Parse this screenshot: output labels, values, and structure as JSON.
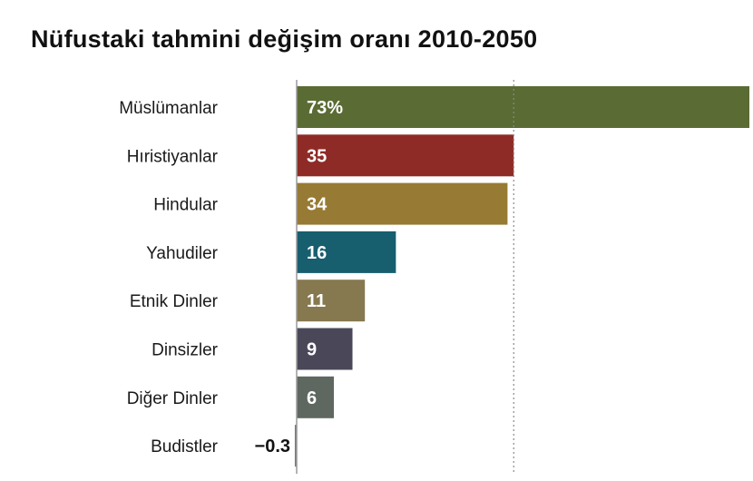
{
  "chart_data": {
    "type": "bar",
    "orientation": "horizontal",
    "title": "Nüfustaki tahmini değişim oranı 2010-2050",
    "categories": [
      "Müslümanlar",
      "Hıristiyanlar",
      "Hindular",
      "Yahudiler",
      "Etnik Dinler",
      "Dinsizler",
      "Diğer Dinler",
      "Budistler"
    ],
    "values": [
      73,
      35,
      34,
      16,
      11,
      9,
      6,
      -0.3
    ],
    "value_labels": [
      "73%",
      "35",
      "34",
      "16",
      "11",
      "9",
      "6",
      "−0.3"
    ],
    "colors": [
      "#5a6b34",
      "#8f2b26",
      "#977a33",
      "#175e6e",
      "#86784f",
      "#4a4858",
      "#5e6861",
      "#777777"
    ],
    "reference_line": 35,
    "xlim": [
      0,
      73
    ]
  }
}
